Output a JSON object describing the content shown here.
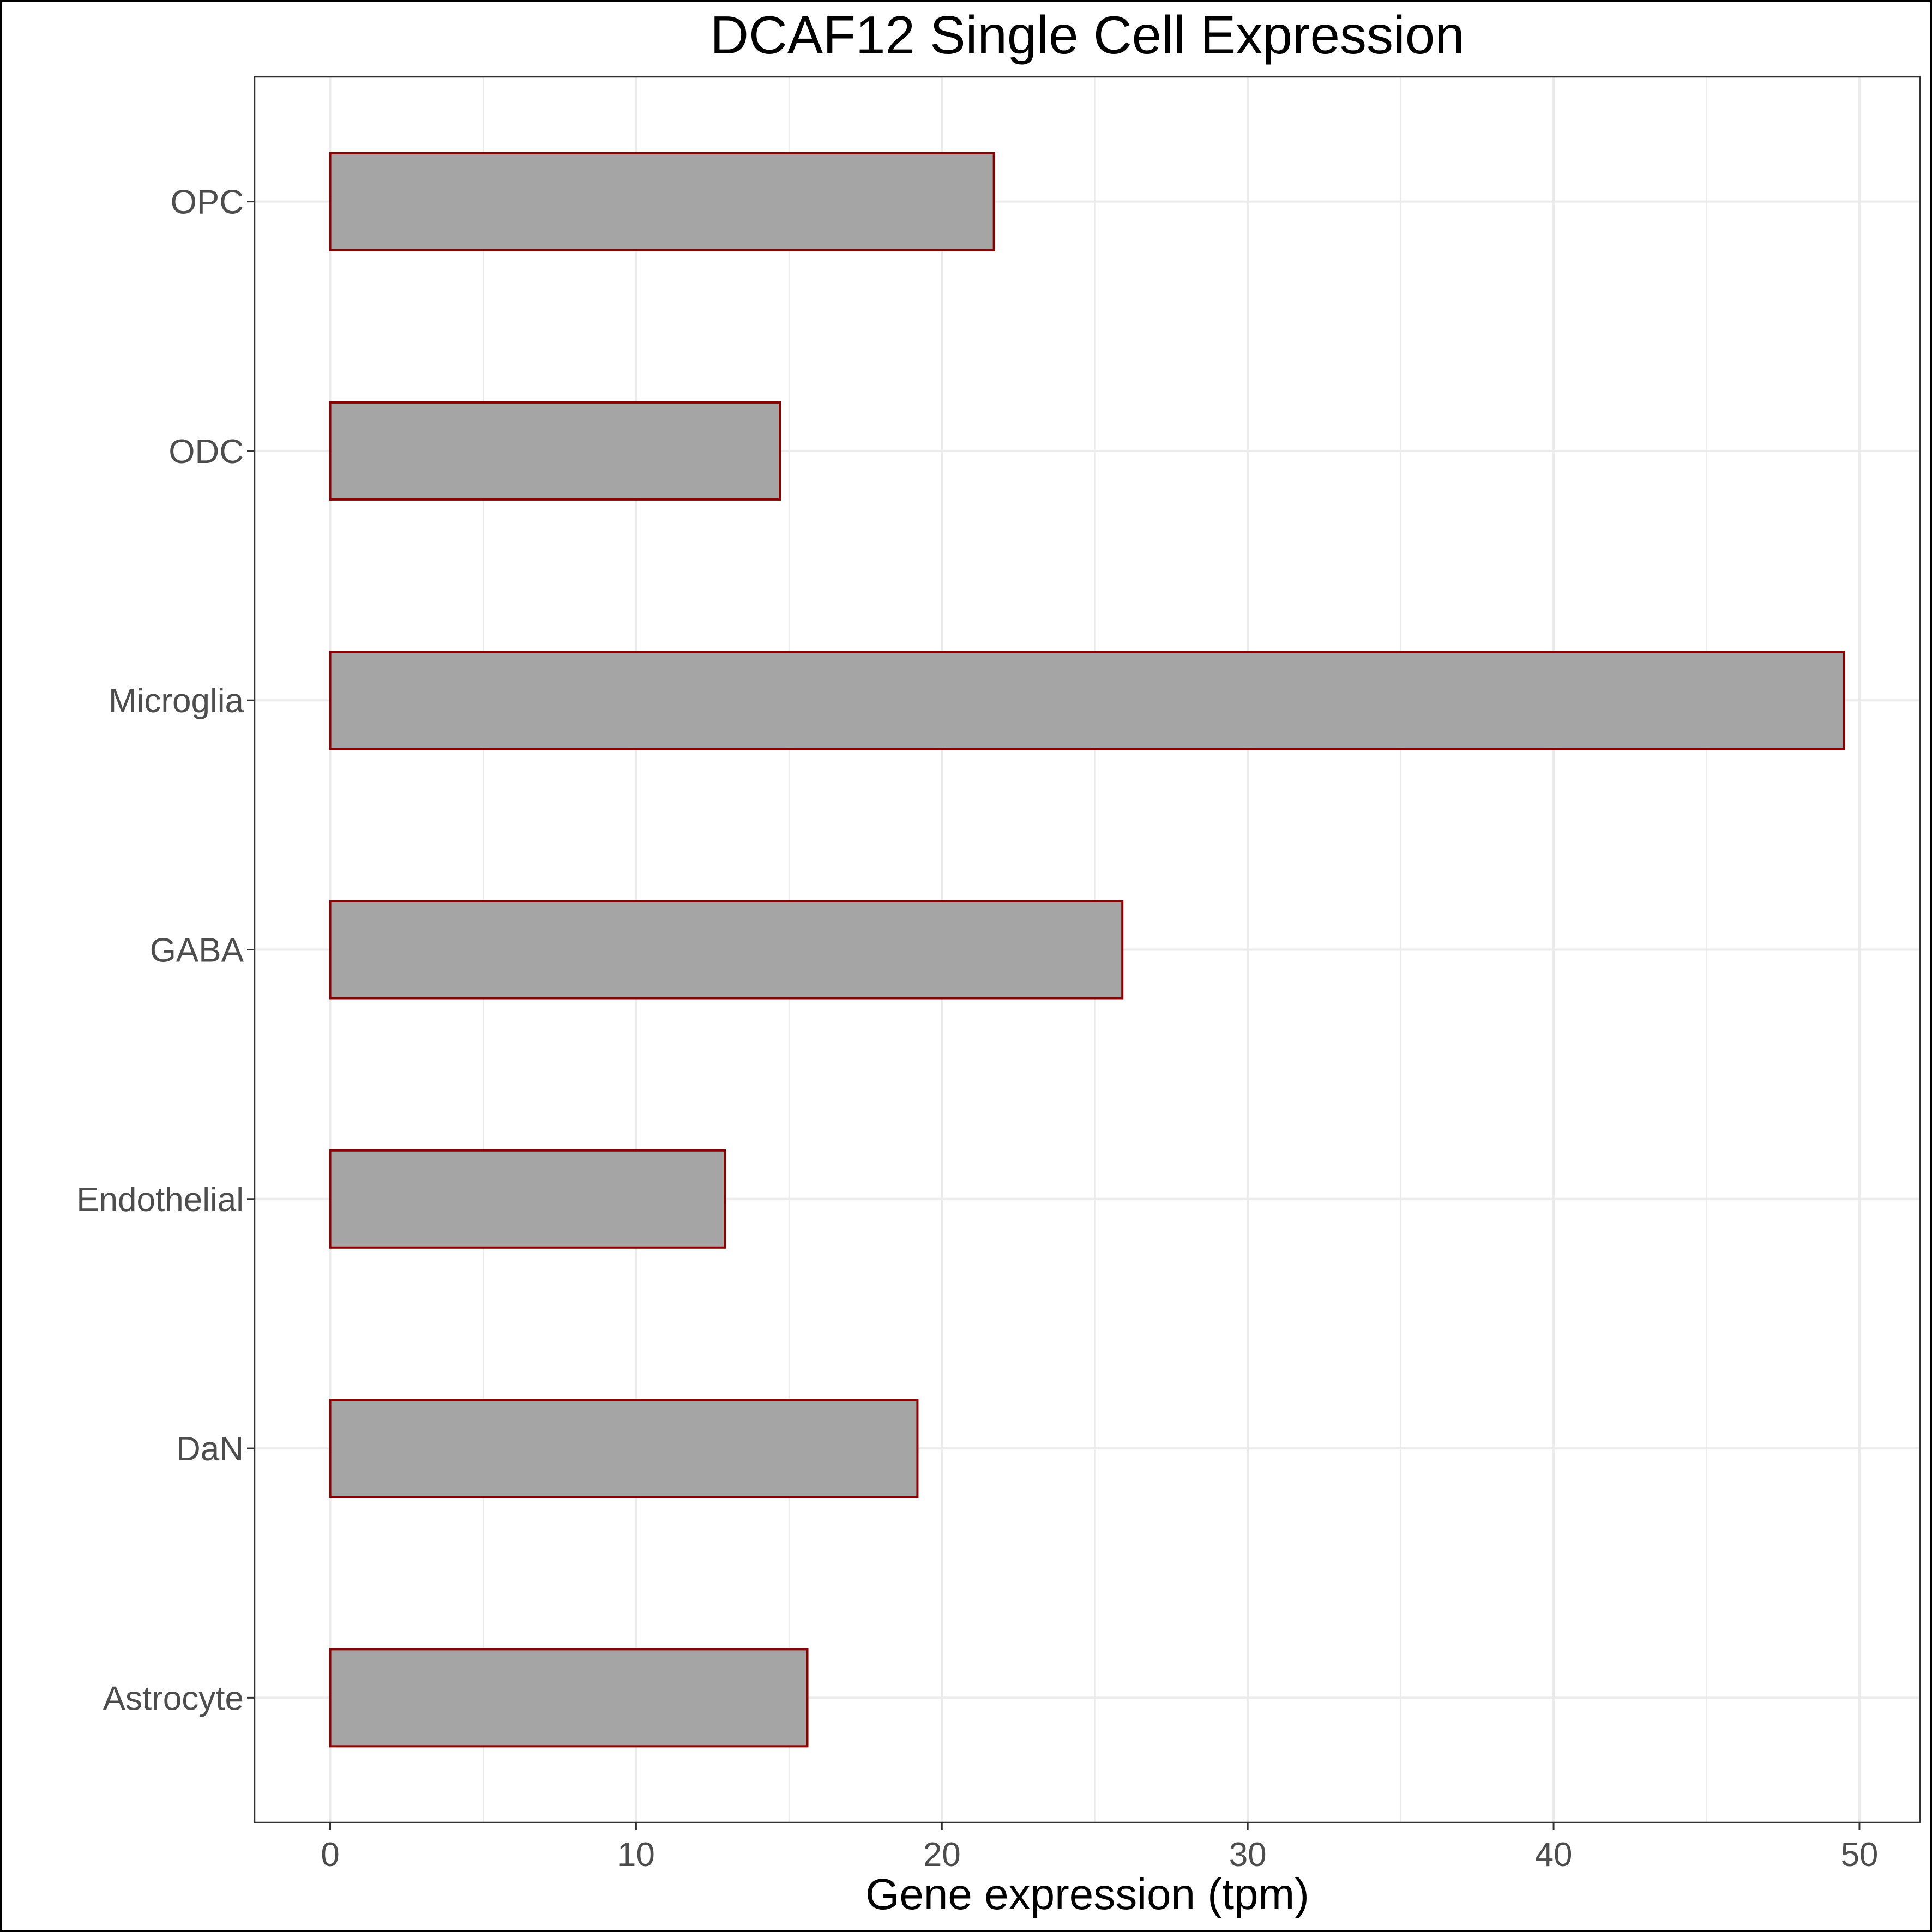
{
  "chart_data": {
    "type": "bar",
    "orientation": "horizontal",
    "title": "DCAF12 Single Cell Expression",
    "xlabel": "Gene expression (tpm)",
    "ylabel": "",
    "categories": [
      "Astrocyte",
      "DaN",
      "Endothelial",
      "GABA",
      "Microglia",
      "ODC",
      "OPC"
    ],
    "values": [
      15.6,
      19.2,
      12.9,
      25.9,
      49.5,
      14.7,
      21.7
    ],
    "xlim": [
      -2.47,
      51.98
    ],
    "xticks": [
      0,
      10,
      20,
      30,
      40,
      50
    ],
    "grid": true,
    "legend": "none",
    "colors": {
      "bar_fill": "#a5a5a5",
      "bar_stroke": "#8b0000",
      "grid": "#ebebeb",
      "panel_border": "#333333"
    }
  }
}
